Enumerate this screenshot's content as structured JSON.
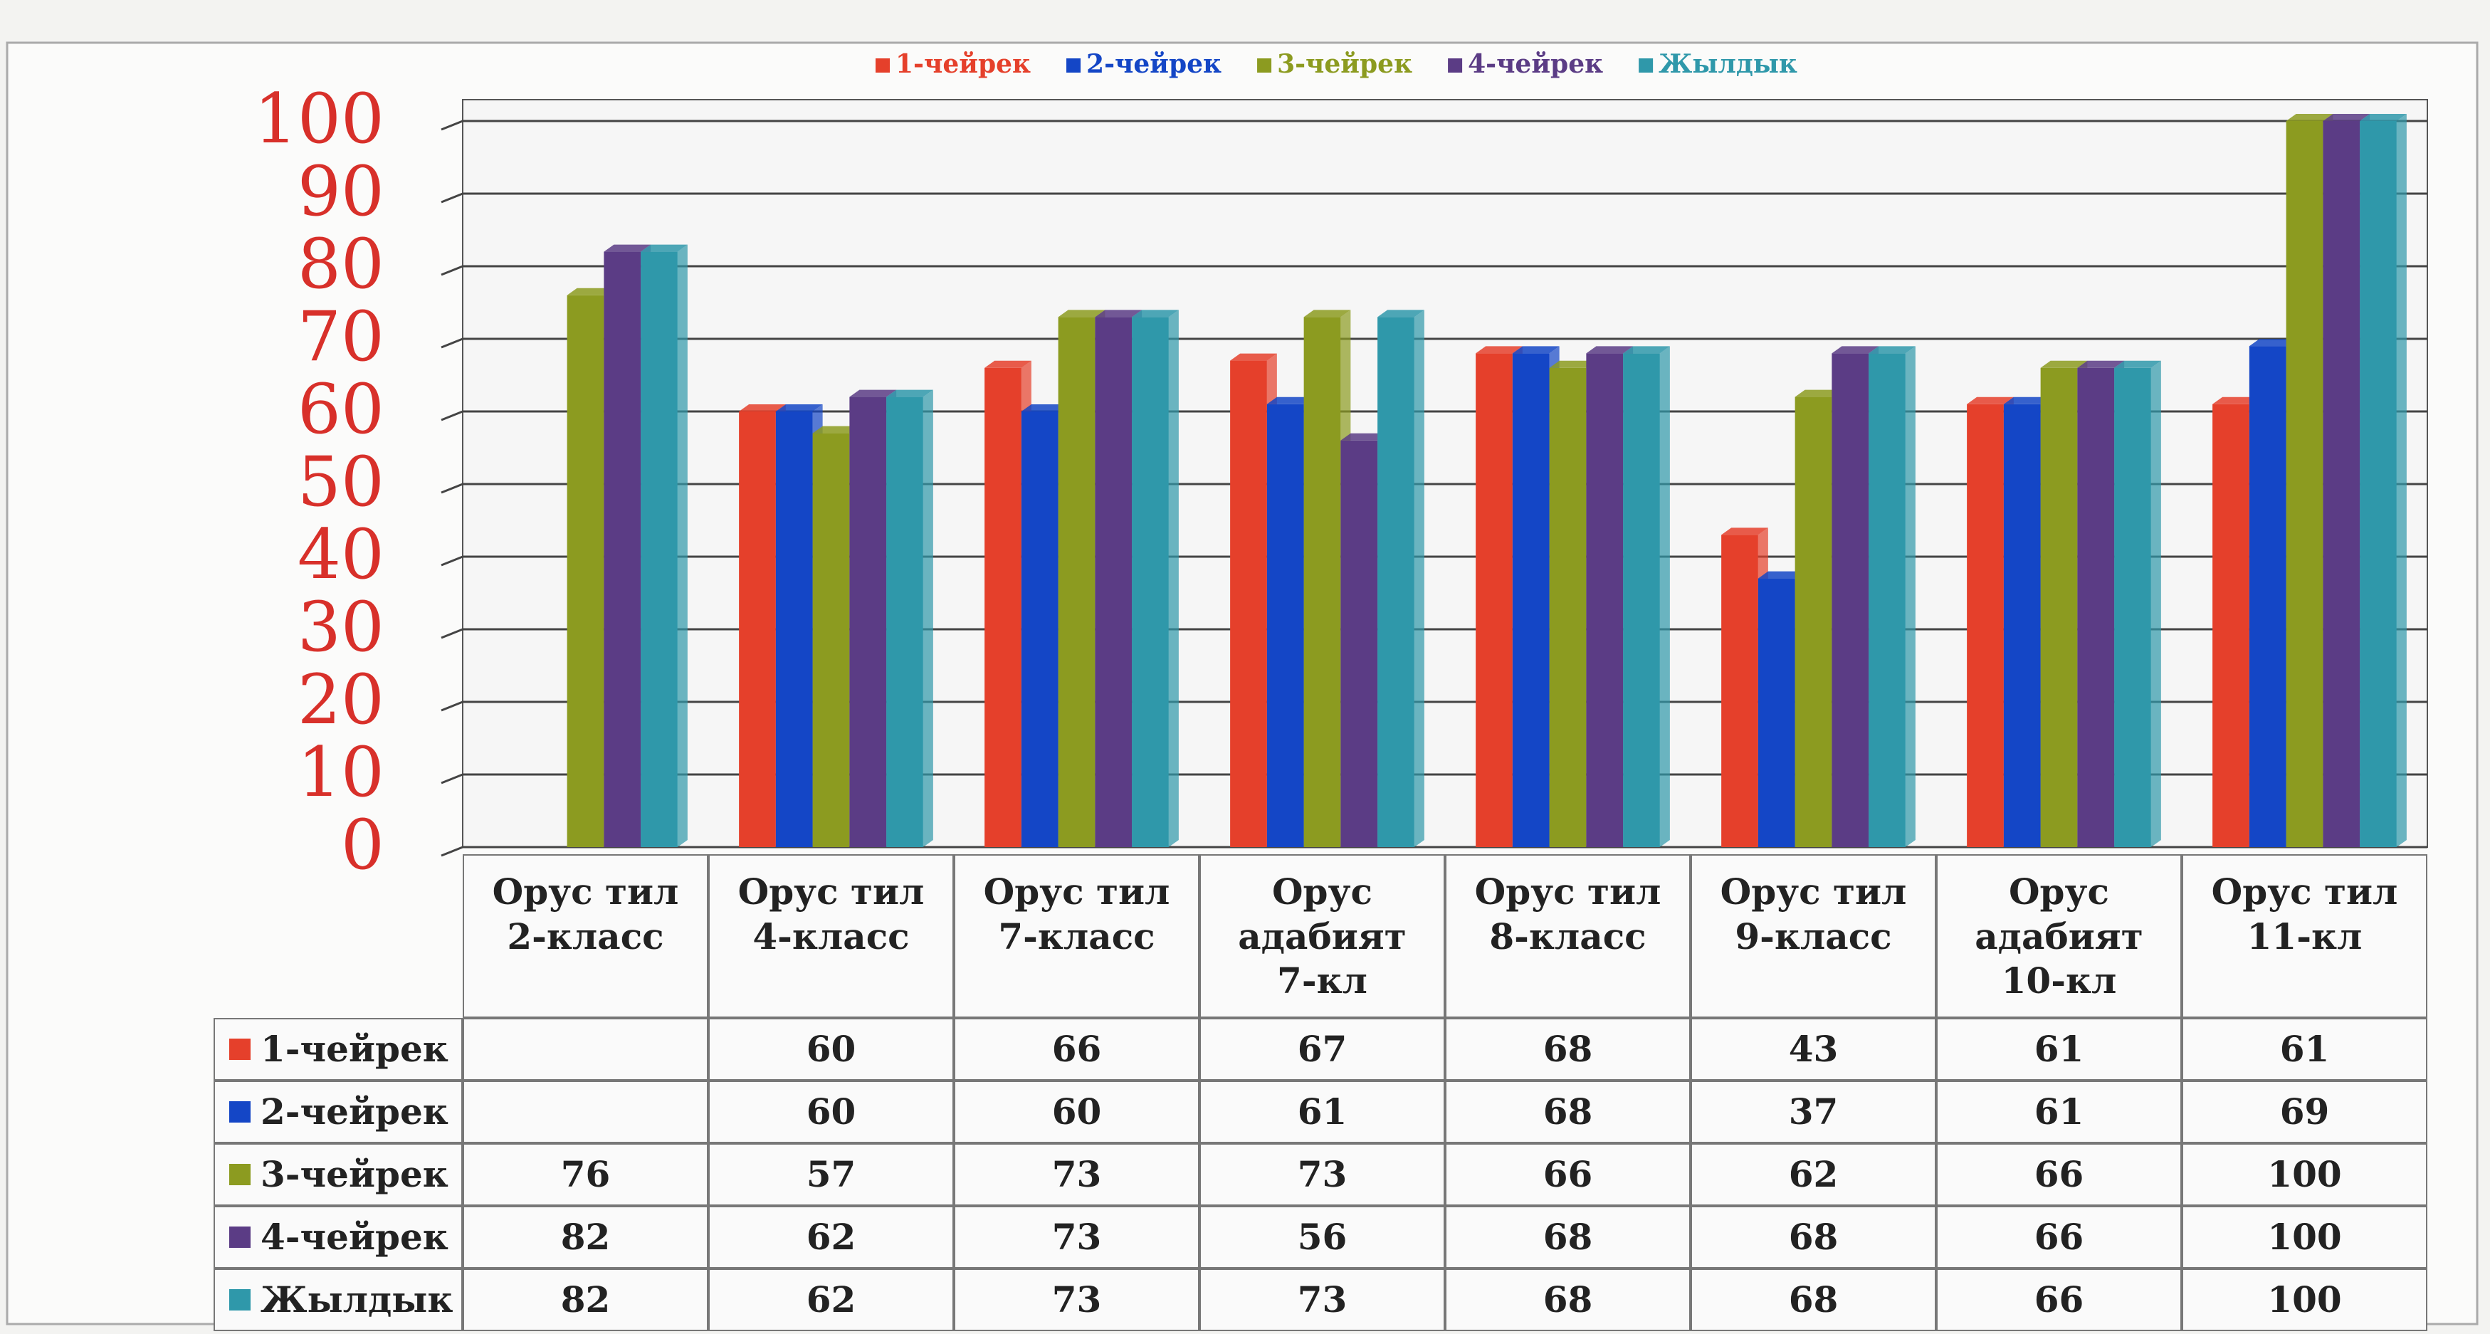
{
  "chart_data": {
    "type": "bar",
    "categories": [
      "Орус тил\n2-класс",
      "Орус тил\n4-класс",
      "Орус тил\n7-класс",
      "Орус\nадабият\n7-кл",
      "Орус тил\n8-класс",
      "Орус тил\n9-класс",
      "Орус\nадабият\n10-кл",
      "Орус тил\n11-кл"
    ],
    "series": [
      {
        "name": "1-чейрек",
        "color": "#e5402b",
        "values": [
          null,
          60,
          66,
          67,
          68,
          43,
          61,
          61
        ]
      },
      {
        "name": "2-чейрек",
        "color": "#1446c6",
        "values": [
          null,
          60,
          60,
          61,
          68,
          37,
          61,
          69
        ]
      },
      {
        "name": "3-чейрек",
        "color": "#8c9b20",
        "values": [
          76,
          57,
          73,
          73,
          66,
          62,
          66,
          100
        ]
      },
      {
        "name": "4-чейрек",
        "color": "#5b3c85",
        "values": [
          82,
          62,
          73,
          56,
          68,
          68,
          66,
          100
        ]
      },
      {
        "name": "Жылдык",
        "color": "#2f98aa",
        "values": [
          82,
          62,
          73,
          73,
          68,
          68,
          66,
          100
        ]
      }
    ],
    "ylim": [
      0,
      100
    ],
    "yticks": [
      0,
      10,
      20,
      30,
      40,
      50,
      60,
      70,
      80,
      90,
      100
    ],
    "grid": true,
    "legend": "top"
  }
}
